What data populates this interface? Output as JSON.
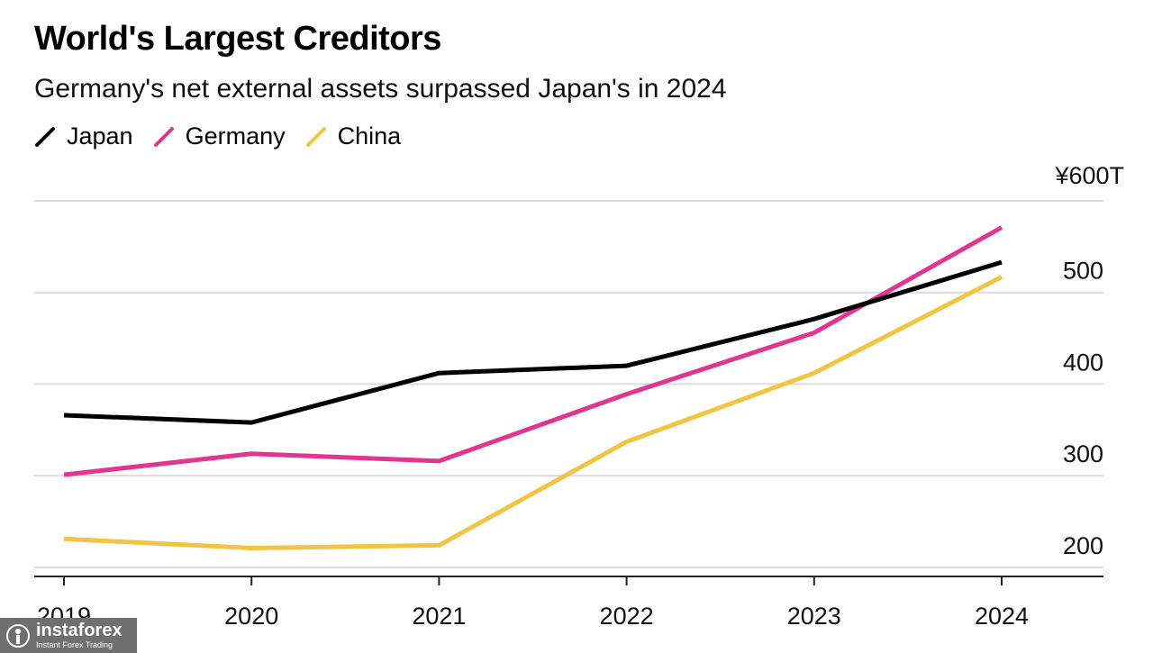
{
  "title": "World's Largest Creditors",
  "subtitle": "Germany's net external assets surpassed Japan's in 2024",
  "legend": [
    {
      "name": "Japan",
      "color": "#000000"
    },
    {
      "name": "Germany",
      "color": "#e0368f"
    },
    {
      "name": "China",
      "color": "#f2c443"
    }
  ],
  "chart_data": {
    "type": "line",
    "title": "World's Largest Creditors",
    "subtitle": "Germany's net external assets surpassed Japan's in 2024",
    "xlabel": "",
    "ylabel": "",
    "x": [
      "2019",
      "2020",
      "2021",
      "2022",
      "2023",
      "2024"
    ],
    "ylim": [
      190,
      600
    ],
    "yticks": [
      {
        "value": 200,
        "label": "200"
      },
      {
        "value": 300,
        "label": "300"
      },
      {
        "value": 400,
        "label": "400"
      },
      {
        "value": 500,
        "label": "500"
      },
      {
        "value": 600,
        "label": "¥600T"
      }
    ],
    "grid": true,
    "legend_position": "top-left",
    "series": [
      {
        "name": "Japan",
        "color": "#000000",
        "values": [
          366,
          358,
          412,
          420,
          471,
          533
        ]
      },
      {
        "name": "Germany",
        "color": "#e0368f",
        "values": [
          301,
          324,
          316,
          389,
          456,
          571
        ]
      },
      {
        "name": "China",
        "color": "#f2c443",
        "values": [
          231,
          221,
          224,
          337,
          412,
          517
        ]
      }
    ]
  },
  "watermark": {
    "brand": "instaforex",
    "tagline": "Instant Forex Trading"
  }
}
